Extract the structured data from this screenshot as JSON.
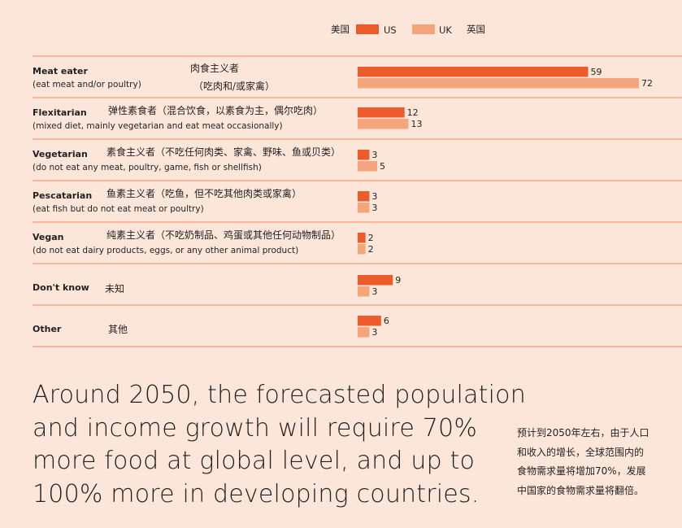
{
  "legend": {
    "us": {
      "zh": "美国",
      "en": "US"
    },
    "uk": {
      "en": "UK",
      "zh": "英国"
    }
  },
  "colors": {
    "us": "#ea5c2b",
    "uk": "#f5a57c",
    "rule": "#f08a64",
    "background": "#fce6da"
  },
  "chart_data": {
    "type": "bar",
    "orientation": "horizontal",
    "grid": false,
    "legend_position": "top-right",
    "categories": [
      {
        "label": "Meat eater",
        "sub": "(eat meat and/or poultry)",
        "zh": [
          "肉食主义者",
          "（吃肉和/或家禽）"
        ]
      },
      {
        "label": "Flexitarian",
        "sub": "(mixed diet, mainly vegetarian and eat meat occasionally)",
        "zh": [
          "弹性素食者（混合饮食，以素食为主，偶尔吃肉）"
        ]
      },
      {
        "label": "Vegetarian",
        "sub": "(do not eat any meat, poultry, game, fish or shellfish)",
        "zh": [
          "素食主义者（不吃任何肉类、家禽、野味、鱼或贝类）"
        ]
      },
      {
        "label": "Pescatarian",
        "sub": "(eat fish but do not eat meat or poultry)",
        "zh": [
          "鱼素主义者（吃鱼，但不吃其他肉类或家禽）"
        ]
      },
      {
        "label": "Vegan",
        "sub": "(do not eat dairy products, eggs, or any other animal product)",
        "zh": [
          "纯素主义者（不吃奶制品、鸡蛋或其他任何动物制品）"
        ]
      },
      {
        "label": "Don't know",
        "sub": "",
        "zh": [
          "未知"
        ]
      },
      {
        "label": "Other",
        "sub": "",
        "zh": [
          "其他"
        ]
      }
    ],
    "series": [
      {
        "name": "US",
        "values": [
          59,
          12,
          3,
          3,
          2,
          9,
          6
        ]
      },
      {
        "name": "UK",
        "values": [
          72,
          13,
          5,
          3,
          2,
          3,
          3
        ]
      }
    ],
    "xlim": [
      0,
      72
    ]
  },
  "headline": [
    "Around 2050, the forecasted population",
    "and income growth will require 70%",
    "more food at global level, and up to",
    "100% more in developing countries."
  ],
  "side_note": [
    "预计到2050年左右，由于人口",
    "和收入的增长，全球范围内的",
    "食物需求量将增加70%，发展",
    "中国家的食物需求量将翻倍。"
  ]
}
